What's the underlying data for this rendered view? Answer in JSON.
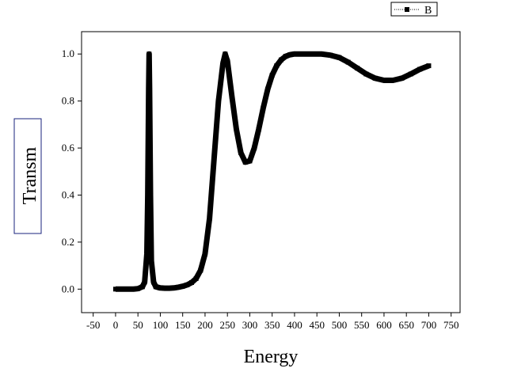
{
  "chart_data": {
    "type": "line",
    "xlabel": "Energy",
    "ylabel": "Transm",
    "x": [
      0,
      10,
      20,
      30,
      40,
      50,
      60,
      65,
      70,
      72,
      74,
      75,
      76,
      78,
      80,
      85,
      90,
      100,
      110,
      120,
      130,
      140,
      150,
      160,
      170,
      180,
      190,
      200,
      210,
      220,
      230,
      240,
      245,
      250,
      260,
      270,
      280,
      290,
      300,
      310,
      320,
      330,
      340,
      350,
      360,
      370,
      380,
      390,
      400,
      420,
      440,
      460,
      480,
      500,
      520,
      540,
      560,
      580,
      600,
      620,
      640,
      660,
      680,
      700
    ],
    "series": [
      {
        "name": "B",
        "color": "#000000",
        "values": [
          0,
          0,
          0,
          0,
          0,
          0.002,
          0.01,
          0.03,
          0.15,
          0.4,
          0.85,
          1.0,
          0.85,
          0.4,
          0.12,
          0.03,
          0.01,
          0.005,
          0.004,
          0.004,
          0.005,
          0.008,
          0.012,
          0.018,
          0.028,
          0.045,
          0.08,
          0.15,
          0.3,
          0.55,
          0.8,
          0.96,
          1.0,
          0.97,
          0.82,
          0.68,
          0.58,
          0.54,
          0.545,
          0.6,
          0.68,
          0.77,
          0.85,
          0.91,
          0.95,
          0.975,
          0.99,
          0.997,
          1.0,
          1.0,
          1.0,
          1.0,
          0.995,
          0.985,
          0.965,
          0.94,
          0.915,
          0.897,
          0.888,
          0.888,
          0.897,
          0.915,
          0.935,
          0.95
        ]
      }
    ],
    "xlim": [
      -76,
      770
    ],
    "ylim": [
      -0.1,
      1.095
    ],
    "xticks": [
      -50,
      0,
      50,
      100,
      150,
      200,
      250,
      300,
      350,
      400,
      450,
      500,
      550,
      600,
      650,
      700,
      750
    ],
    "yticks": [
      {
        "value": 0,
        "label": "0.0"
      },
      {
        "value": 0.2,
        "label": "0.2"
      },
      {
        "value": 0.4,
        "label": "0.4"
      },
      {
        "value": 0.6,
        "label": "0.6"
      },
      {
        "value": 0.8,
        "label": "0.8"
      },
      {
        "value": 1.0,
        "label": "1.0"
      }
    ],
    "legend": "top-right"
  }
}
